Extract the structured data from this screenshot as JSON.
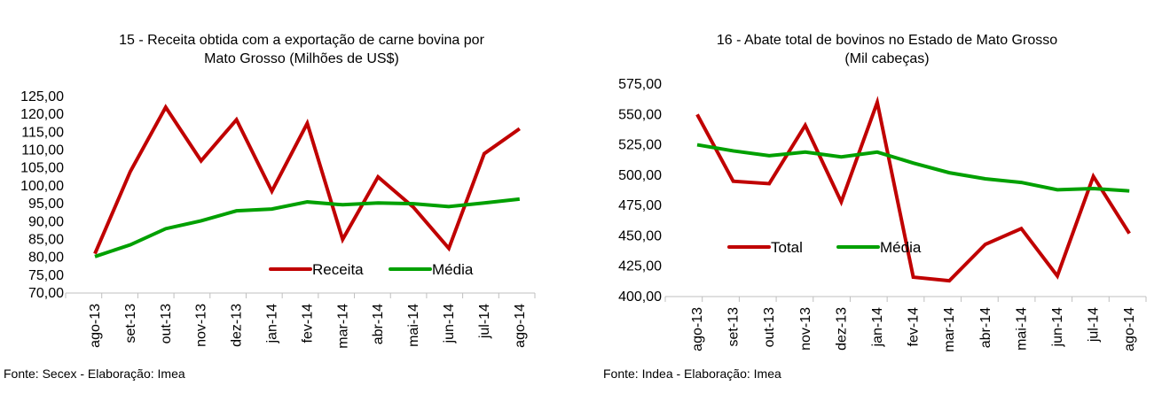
{
  "chart_data": [
    {
      "type": "line",
      "title": [
        "15 - Receita obtida com a exportação de carne bovina por",
        "Mato Grosso (Milhões de US$)"
      ],
      "categories": [
        "ago-13",
        "set-13",
        "out-13",
        "nov-13",
        "dez-13",
        "jan-14",
        "fev-14",
        "mar-14",
        "abr-14",
        "mai-14",
        "jun-14",
        "jul-14",
        "ago-14"
      ],
      "ylim": [
        70,
        125
      ],
      "ystep": 5,
      "series": [
        {
          "name": "Receita",
          "color": "#c00000",
          "values": [
            81,
            104,
            122,
            107,
            118.5,
            98.5,
            117.5,
            85,
            102.5,
            94,
            82.5,
            109,
            116
          ]
        },
        {
          "name": "Média",
          "color": "#00a000",
          "values": [
            80.2,
            83.5,
            88,
            90.2,
            93,
            93.5,
            95.5,
            94.7,
            95.2,
            95,
            94.2,
            95.2,
            96.3
          ]
        }
      ],
      "legend": "bottom-right",
      "source": "Fonte: Secex - Elaboração: Imea"
    },
    {
      "type": "line",
      "title": [
        "16 - Abate total de bovinos no Estado de Mato Grosso",
        "(Mil cabeças)"
      ],
      "categories": [
        "ago-13",
        "set-13",
        "out-13",
        "nov-13",
        "dez-13",
        "jan-14",
        "fev-14",
        "mar-14",
        "abr-14",
        "mai-14",
        "jun-14",
        "jul-14",
        "ago-14"
      ],
      "ylim": [
        400,
        575
      ],
      "ystep": 25,
      "series": [
        {
          "name": "Total",
          "color": "#c00000",
          "values": [
            550,
            495,
            493,
            541,
            478,
            560,
            416,
            413,
            443,
            456,
            417,
            499,
            452
          ]
        },
        {
          "name": "Média",
          "color": "#00a000",
          "values": [
            525,
            520,
            516,
            519,
            515,
            519,
            510,
            502,
            497,
            494,
            488,
            489,
            487
          ]
        }
      ],
      "legend": "bottom-left",
      "source": "Fonte: Indea - Elaboração: Imea"
    }
  ]
}
